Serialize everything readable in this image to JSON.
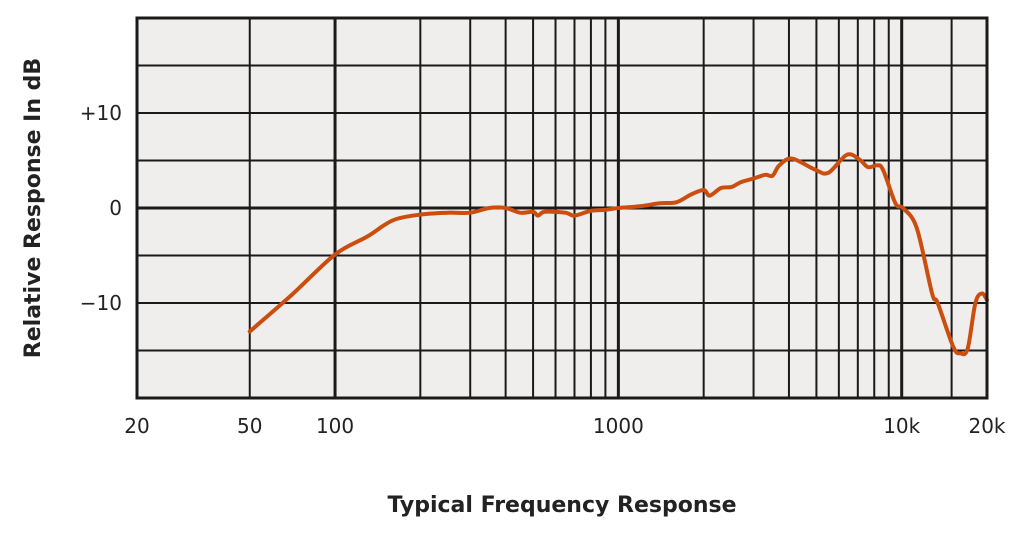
{
  "chart_data": {
    "type": "line",
    "title": "Typical Frequency Response",
    "xlabel": "Typical Frequency Response",
    "ylabel": "Relative Response In dB",
    "xscale": "log",
    "xlim": [
      20,
      20000
    ],
    "ylim": [
      -20,
      20
    ],
    "grid": true,
    "x_gridlines": [
      50,
      100,
      200,
      300,
      400,
      500,
      600,
      700,
      800,
      900,
      1000,
      2000,
      3000,
      4000,
      5000,
      6000,
      7000,
      8000,
      9000,
      10000,
      15000
    ],
    "y_gridlines": [
      -15,
      -10,
      -5,
      0,
      5,
      10,
      15
    ],
    "x_ticks": [
      {
        "v": 20,
        "label": "20"
      },
      {
        "v": 50,
        "label": "50"
      },
      {
        "v": 100,
        "label": "100"
      },
      {
        "v": 1000,
        "label": "1000"
      },
      {
        "v": 10000,
        "label": "10k"
      },
      {
        "v": 20000,
        "label": "20k"
      }
    ],
    "y_ticks": [
      {
        "v": 10,
        "label": "+10"
      },
      {
        "v": 0,
        "label": "0"
      },
      {
        "v": -10,
        "label": "−10"
      }
    ],
    "colors": {
      "line": "#cc4e0e",
      "plot_bg": "#efeeed",
      "grid": "#1a1a1a"
    },
    "series": [
      {
        "name": "Response",
        "x": [
          50,
          70,
          100,
          130,
          160,
          200,
          250,
          300,
          350,
          400,
          450,
          500,
          520,
          550,
          650,
          700,
          800,
          900,
          1000,
          1200,
          1400,
          1600,
          1800,
          2000,
          2100,
          2300,
          2500,
          2700,
          3000,
          3300,
          3500,
          3700,
          4100,
          4900,
          5500,
          6400,
          7100,
          7600,
          8200,
          8600,
          9500,
          10100,
          11300,
          12800,
          13400,
          15200,
          16100,
          17100,
          18200,
          19200,
          20000
        ],
        "y": [
          -13.0,
          -9.2,
          -4.9,
          -3.0,
          -1.3,
          -0.7,
          -0.5,
          -0.5,
          0,
          0,
          -0.5,
          -0.4,
          -0.8,
          -0.4,
          -0.5,
          -0.8,
          -0.3,
          -0.2,
          0,
          0.2,
          0.5,
          0.6,
          1.4,
          1.9,
          1.3,
          2.1,
          2.2,
          2.7,
          3.1,
          3.5,
          3.4,
          4.5,
          5.2,
          4.1,
          3.7,
          5.6,
          5.1,
          4.3,
          4.5,
          4.0,
          0.5,
          0,
          -2.1,
          -9.0,
          -10.0,
          -14.6,
          -15.3,
          -14.8,
          -10.0,
          -9.0,
          -9.7
        ]
      }
    ]
  }
}
